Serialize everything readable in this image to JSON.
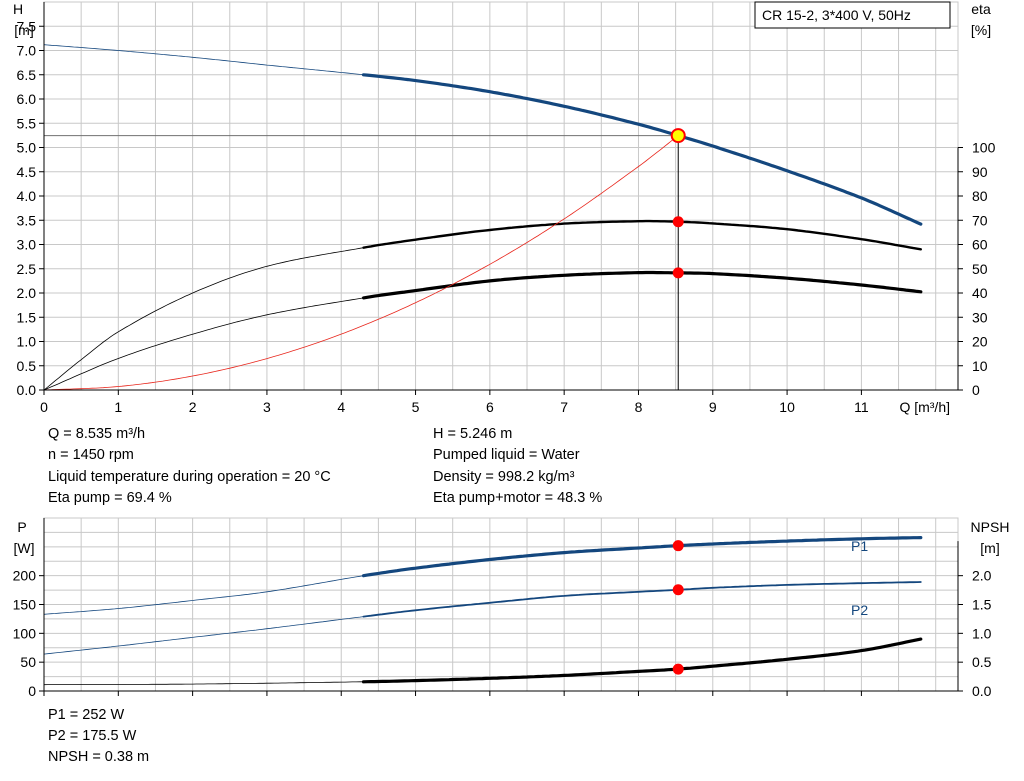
{
  "chart_data": [
    {
      "type": "line",
      "title": "CR 15-2, 3*400 V, 50Hz",
      "xlabel": "Q [m³/h]",
      "ylabel_left": "H [m]",
      "ylabel_right": "eta [%]",
      "xlim": [
        0,
        12.3
      ],
      "ylim_left": [
        0,
        8
      ],
      "ylim_right": [
        0,
        160
      ],
      "grid": true,
      "series": [
        {
          "role": "H",
          "axis": "left",
          "color": "#14477e",
          "width": 3.2,
          "x": [
            0,
            1,
            2,
            3,
            4.3,
            5,
            6,
            7,
            8,
            8.535,
            9,
            10,
            11,
            11.8
          ],
          "y": [
            7.12,
            7.0,
            6.86,
            6.7,
            6.5,
            6.38,
            6.15,
            5.85,
            5.48,
            5.246,
            5.03,
            4.52,
            3.96,
            3.42
          ],
          "solid_from": 4.3
        },
        {
          "role": "eta_pump",
          "axis": "right",
          "color": "#000000",
          "width": 2.4,
          "x": [
            0,
            0.5,
            1,
            2,
            3,
            4.3,
            5,
            6,
            7,
            8,
            8.535,
            9,
            10,
            11,
            11.8
          ],
          "y": [
            0,
            12.5,
            24,
            40,
            51,
            58.7,
            62,
            66,
            68.6,
            69.6,
            69.4,
            68.7,
            66.3,
            62.2,
            58
          ],
          "solid_from": 4.3
        },
        {
          "role": "eta_pump_motor",
          "axis": "right",
          "color": "#000000",
          "width": 3.2,
          "x": [
            0,
            1,
            2,
            3,
            4.3,
            5,
            6,
            7,
            8,
            8.535,
            9,
            10,
            11,
            11.8
          ],
          "y": [
            0,
            13,
            23,
            31,
            38,
            41,
            45,
            47.3,
            48.4,
            48.3,
            48,
            46.1,
            43.3,
            40.5
          ],
          "solid_from": 4.3
        },
        {
          "role": "system_curve",
          "axis": "left",
          "color": "#e8261c",
          "width": 0.8,
          "x": [
            0,
            1,
            2,
            3,
            4,
            5,
            6,
            7,
            8,
            8.535
          ],
          "y": [
            0,
            0.072,
            0.288,
            0.648,
            1.152,
            1.8,
            2.592,
            3.528,
            4.608,
            5.246
          ],
          "solid_from": 99
        }
      ],
      "operating_lines": {
        "x": 8.535,
        "y": 5.246
      },
      "markers": [
        {
          "axis": "left",
          "x": 8.535,
          "y": 5.246,
          "style": "ring"
        },
        {
          "axis": "right",
          "x": 8.535,
          "y": 69.4,
          "style": "dot"
        },
        {
          "axis": "right",
          "x": 8.535,
          "y": 48.3,
          "style": "dot"
        }
      ]
    },
    {
      "type": "line",
      "xlabel": "",
      "ylabel_left": "P [W]",
      "ylabel_right": "NPSH [m]",
      "xlim": [
        0,
        12.3
      ],
      "ylim_left": [
        0,
        300
      ],
      "ylim_right": [
        0,
        3.0
      ],
      "grid": true,
      "series": [
        {
          "name": "P1",
          "axis": "left",
          "color": "#14477e",
          "width": 3.2,
          "x": [
            0,
            1,
            2,
            3,
            4.3,
            5,
            6,
            7,
            8,
            8.535,
            9,
            10,
            11,
            11.8
          ],
          "y": [
            133,
            143,
            157,
            172,
            200,
            213,
            228,
            240,
            248,
            252,
            255,
            260,
            264,
            266
          ],
          "solid_from": 4.3
        },
        {
          "name": "P2",
          "axis": "left",
          "color": "#14477e",
          "width": 1.8,
          "x": [
            0,
            1,
            2,
            3,
            4.3,
            5,
            6,
            7,
            8,
            8.535,
            9,
            10,
            11,
            11.8
          ],
          "y": [
            64,
            78,
            93,
            108,
            129,
            140,
            153,
            165,
            172,
            175.5,
            179,
            184,
            187,
            189
          ],
          "solid_from": 4.3
        },
        {
          "role": "NPSH",
          "axis": "right",
          "color": "#000000",
          "width": 3.2,
          "x": [
            0,
            2,
            4.3,
            5,
            6,
            7,
            8,
            8.535,
            9,
            10,
            11,
            11.8
          ],
          "y": [
            0.11,
            0.12,
            0.16,
            0.18,
            0.22,
            0.27,
            0.34,
            0.38,
            0.43,
            0.55,
            0.7,
            0.9
          ],
          "solid_from": 4.3
        }
      ],
      "markers": [
        {
          "axis": "left",
          "x": 8.535,
          "y": 252,
          "style": "dot"
        },
        {
          "axis": "left",
          "x": 8.535,
          "y": 175.5,
          "style": "dot"
        },
        {
          "axis": "right",
          "x": 8.535,
          "y": 0.38,
          "style": "dot"
        }
      ]
    }
  ],
  "top_chart": {
    "title": "CR 15-2, 3*400 V, 50Hz",
    "y_left_title": "H",
    "y_left_unit": "[m]",
    "y_right_title": "eta",
    "y_right_unit": "[%]",
    "x_axis_label": "Q [m³/h]",
    "x_ticks": [
      "0",
      "1",
      "2",
      "3",
      "4",
      "5",
      "6",
      "7",
      "8",
      "9",
      "10",
      "11"
    ],
    "y_left_ticks": [
      "0.0",
      "0.5",
      "1.0",
      "1.5",
      "2.0",
      "2.5",
      "3.0",
      "3.5",
      "4.0",
      "4.5",
      "5.0",
      "5.5",
      "6.0",
      "6.5",
      "7.0",
      "7.5"
    ],
    "y_right_ticks": [
      "0",
      "10",
      "20",
      "30",
      "40",
      "50",
      "60",
      "70",
      "80",
      "90",
      "100"
    ]
  },
  "bottom_chart": {
    "y_left_title": "P",
    "y_left_unit": "[W]",
    "y_right_title": "NPSH",
    "y_right_unit": "[m]",
    "y_left_ticks": [
      "0",
      "50",
      "100",
      "150",
      "200"
    ],
    "y_right_ticks": [
      "0.0",
      "0.5",
      "1.0",
      "1.5",
      "2.0"
    ],
    "series_labels": [
      "P1",
      "P2"
    ]
  },
  "duty_point": {
    "q": "Q = 8.535 m³/h",
    "n": "n = 1450 rpm",
    "liquid_temp": "Liquid temperature during operation = 20 °C",
    "eta_pump": "Eta pump = 69.4 %",
    "h": "H = 5.246 m",
    "pumped_liquid": "Pumped liquid = Water",
    "density": "Density = 998.2 kg/m³",
    "eta_pump_motor": "Eta pump+motor = 48.3 %"
  },
  "power_values": {
    "p1": "P1 = 252 W",
    "p2": "P2 = 175.5 W",
    "npsh": "NPSH = 0.38 m"
  },
  "colors": {
    "curve_blue": "#14477e",
    "system_red": "#e8261c",
    "marker_red": "#ff0000",
    "marker_yellow": "#ffff00",
    "grid": "#c8c8c8"
  }
}
